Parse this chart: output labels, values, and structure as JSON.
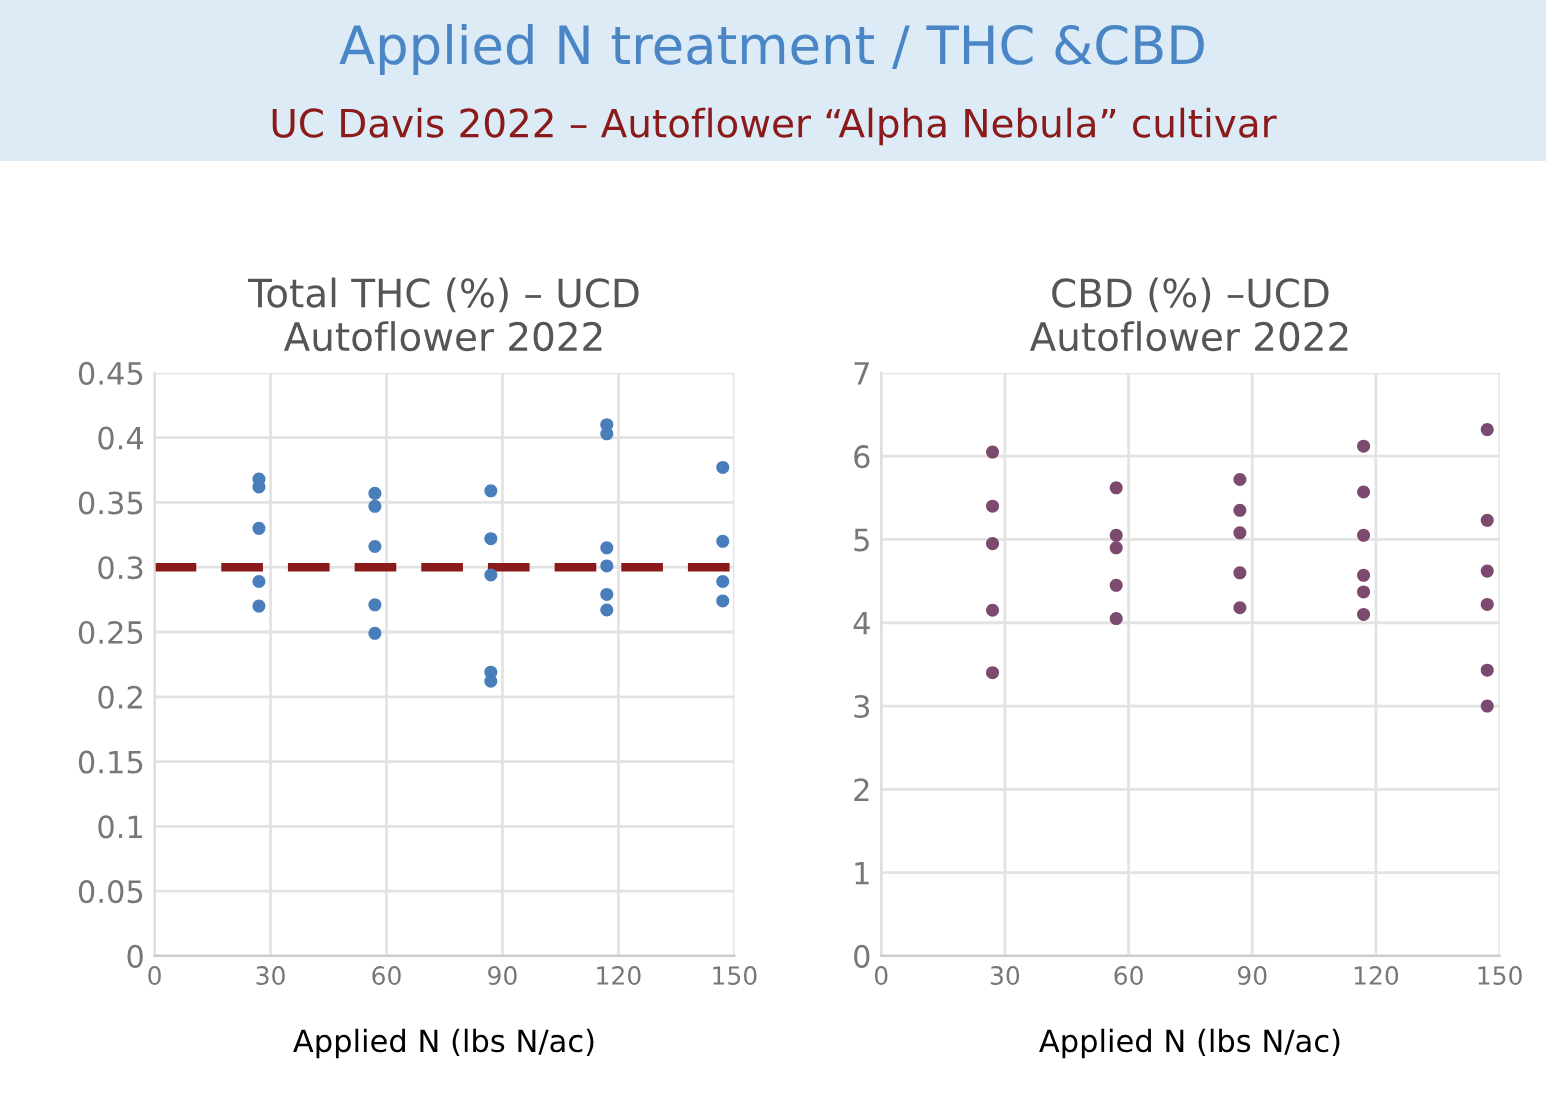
{
  "chart_data": [
    {
      "type": "other",
      "title": "Applied N treatment / THC &CBD",
      "subtitle": "UC Davis 2022 – Autoflower “Alpha Nebula” cultivar"
    },
    {
      "type": "scatter",
      "title": "Total THC (%) – UCD\nAutoflower 2022",
      "xlabel": "Applied N (lbs N/ac)",
      "marker": "circle",
      "grid": true,
      "legend": false,
      "xlim": [
        0,
        150
      ],
      "xticks": [
        0,
        30,
        60,
        90,
        120,
        150
      ],
      "ylim": [
        0,
        0.45
      ],
      "yticks": [
        0,
        0.05,
        0.1,
        0.15,
        0.2,
        0.25,
        0.3,
        0.35,
        0.4,
        0.45
      ],
      "ref_lines": [
        {
          "axis": "y",
          "value": 0.3,
          "color": "#8b1a1a",
          "line_style": "dashed"
        }
      ],
      "series": [
        {
          "color": "#4a7ebb",
          "x": [
            27,
            27,
            27,
            27,
            27,
            57,
            57,
            57,
            57,
            57,
            87,
            87,
            87,
            87,
            87,
            117,
            117,
            117,
            117,
            117,
            117,
            147,
            147,
            147,
            147
          ],
          "values": [
            0.368,
            0.362,
            0.33,
            0.289,
            0.27,
            0.357,
            0.347,
            0.316,
            0.271,
            0.249,
            0.359,
            0.322,
            0.294,
            0.219,
            0.212,
            0.41,
            0.403,
            0.315,
            0.301,
            0.279,
            0.267,
            0.377,
            0.32,
            0.289,
            0.274
          ]
        }
      ]
    },
    {
      "type": "scatter",
      "title": "CBD (%) –UCD\nAutoflower 2022",
      "xlabel": "Applied N (lbs N/ac)",
      "marker": "circle",
      "grid": true,
      "legend": false,
      "xlim": [
        0,
        150
      ],
      "xticks": [
        0,
        30,
        60,
        90,
        120,
        150
      ],
      "ylim": [
        0,
        7
      ],
      "yticks": [
        0,
        1,
        2,
        3,
        4,
        5,
        6,
        7
      ],
      "series": [
        {
          "color": "#7b4a6e",
          "x": [
            27,
            27,
            27,
            27,
            27,
            57,
            57,
            57,
            57,
            57,
            87,
            87,
            87,
            87,
            87,
            117,
            117,
            117,
            117,
            117,
            117,
            147,
            147,
            147,
            147,
            147,
            147
          ],
          "values": [
            6.05,
            5.4,
            4.95,
            4.15,
            3.4,
            5.62,
            5.05,
            4.9,
            4.45,
            4.05,
            5.72,
            5.35,
            5.08,
            4.6,
            4.18,
            6.12,
            5.57,
            5.05,
            4.57,
            4.37,
            4.1,
            6.32,
            5.23,
            4.62,
            4.22,
            3.43,
            3.0
          ]
        }
      ]
    }
  ]
}
